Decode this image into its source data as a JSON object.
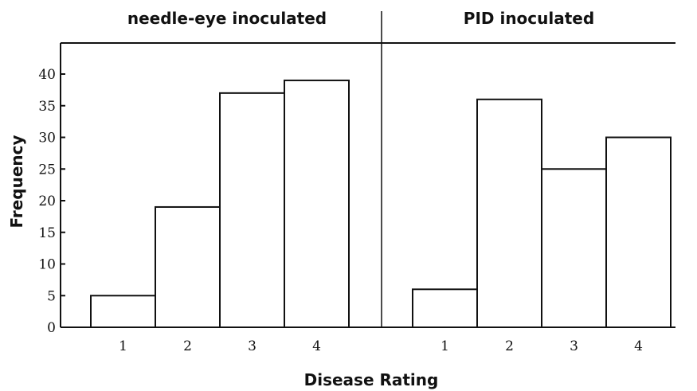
{
  "chart_data": {
    "type": "bar",
    "ylabel": "Frequency",
    "xlabel": "Disease Rating",
    "ylim": [
      0,
      45
    ],
    "yticks": [
      0,
      5,
      10,
      15,
      20,
      25,
      30,
      35,
      40
    ],
    "categories": [
      "1",
      "2",
      "3",
      "4"
    ],
    "panels": [
      {
        "title": "needle-eye inoculated",
        "values": [
          5,
          19,
          37,
          39
        ]
      },
      {
        "title": "PID inoculated",
        "values": [
          6,
          36,
          25,
          30
        ]
      }
    ],
    "bar_fill": "#ffffff",
    "bar_stroke": "#111111",
    "grid": false
  }
}
